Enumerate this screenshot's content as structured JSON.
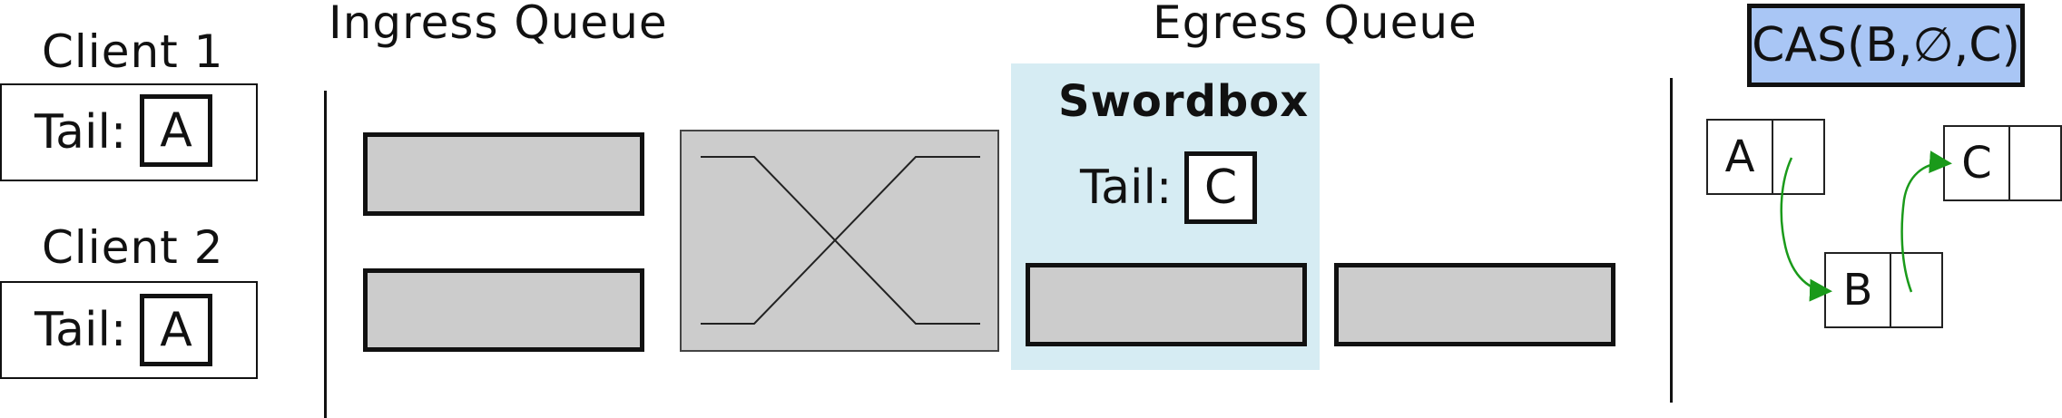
{
  "headers": {
    "ingress": "Ingress Queue",
    "egress": "Egress Queue"
  },
  "clients": [
    {
      "name": "Client 1",
      "tail_label": "Tail:",
      "tail_value": "A"
    },
    {
      "name": "Client 2",
      "tail_label": "Tail:",
      "tail_value": "A"
    }
  ],
  "swordbox": {
    "title": "Swordbox",
    "tail_label": "Tail:",
    "tail_value": "C"
  },
  "cas": {
    "label": "CAS(B,∅,C)"
  },
  "nodes": [
    {
      "value": "A"
    },
    {
      "value": "B"
    },
    {
      "value": "C"
    }
  ],
  "colors": {
    "queue_fill": "#cccccc",
    "swordbox_bg": "#d6ecf3",
    "cas_fill": "#a9c6f5",
    "arrow": "#1a9a1a"
  }
}
